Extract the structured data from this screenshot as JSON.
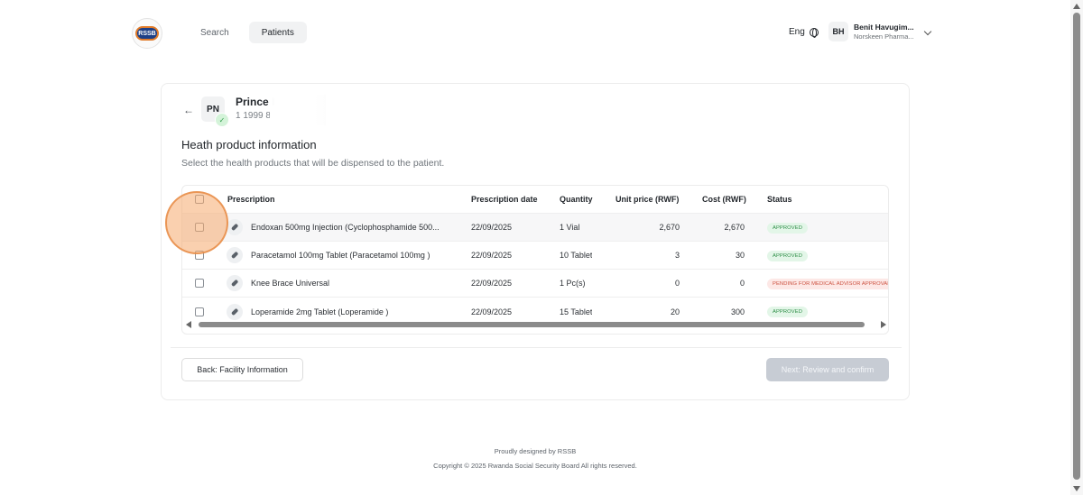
{
  "header": {
    "logo_text": "RSSB",
    "nav": [
      {
        "label": "Search",
        "active": false
      },
      {
        "label": "Patients",
        "active": true
      }
    ],
    "language": "Eng",
    "user": {
      "initials": "BH",
      "name": "Benit Havugim...",
      "org": "Norskeen Pharma..."
    }
  },
  "patient": {
    "initials": "PN",
    "name": "Prince I",
    "id": "1 1999 8"
  },
  "section": {
    "title": "Heath product information",
    "subtitle": "Select the health products that will be dispensed to the patient."
  },
  "table": {
    "headers": {
      "prescription": "Prescription",
      "date": "Prescription date",
      "quantity": "Quantity",
      "unit_price": "Unit price (RWF)",
      "cost": "Cost (RWF)",
      "status": "Status"
    },
    "rows": [
      {
        "name": "Endoxan 500mg Injection (Cyclophosphamide 500...",
        "date": "22/09/2025",
        "quantity": "1 Vial",
        "unit_price": "2,670",
        "cost": "2,670",
        "status": "APPROVED"
      },
      {
        "name": "Paracetamol 100mg Tablet (Paracetamol 100mg )",
        "date": "22/09/2025",
        "quantity": "10 Tablet",
        "unit_price": "3",
        "cost": "30",
        "status": "APPROVED"
      },
      {
        "name": "Knee Brace Universal",
        "date": "22/09/2025",
        "quantity": "1 Pc(s)",
        "unit_price": "0",
        "cost": "0",
        "status": "PENDING FOR MEDICAL ADVISOR APPROVAL"
      },
      {
        "name": "Loperamide 2mg Tablet (Loperamide )",
        "date": "22/09/2025",
        "quantity": "15 Tablet",
        "unit_price": "20",
        "cost": "300",
        "status": "APPROVED"
      }
    ]
  },
  "actions": {
    "back_label": "Back: Facility Information",
    "next_label": "Next: Review and confirm"
  },
  "footer": {
    "line1": "Proudly designed by RSSB",
    "line2": "Copyright © 2025 Rwanda Social Security Board All rights reserved."
  },
  "colors": {
    "approved_bg": "#e3f6e8",
    "approved_text": "#2f8f48",
    "pending_bg": "#fde8e6",
    "pending_text": "#cc5140",
    "next_disabled": "#c7ccd4"
  }
}
